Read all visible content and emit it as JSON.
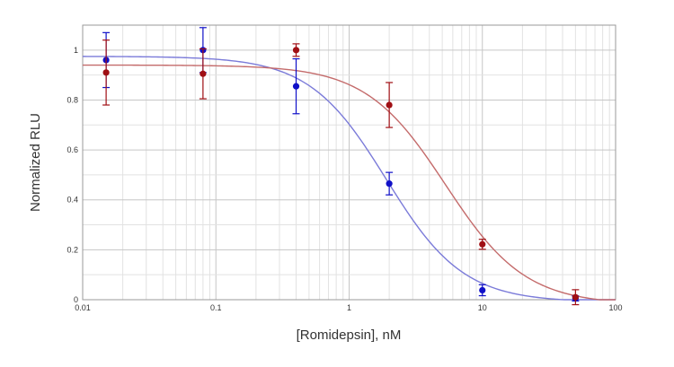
{
  "chart_data": {
    "type": "scatter",
    "title": "",
    "xlabel": "[Romidepsin], nM",
    "ylabel": "Normalized RLU",
    "x_scale": "log",
    "xlim": [
      0.01,
      100
    ],
    "ylim": [
      0,
      1.1
    ],
    "x_ticks": [
      0.01,
      0.1,
      1,
      10,
      100
    ],
    "x_tick_labels": [
      "0.01",
      "0.1",
      "1",
      "10",
      "100"
    ],
    "y_ticks": [
      0,
      0.2,
      0.4,
      0.6,
      0.8,
      1
    ],
    "y_tick_labels": [
      "0",
      "0.2",
      "0.4",
      "0.6",
      "0.8",
      "1"
    ],
    "grid": true,
    "legend": "none",
    "series": [
      {
        "color": "#1010c8",
        "curve_color": "#7b7bd9",
        "points": [
          {
            "x": 0.015,
            "y": 0.96,
            "err": 0.11
          },
          {
            "x": 0.08,
            "y": 1.0,
            "err": 0.09
          },
          {
            "x": 0.4,
            "y": 0.855,
            "err": 0.11
          },
          {
            "x": 2,
            "y": 0.465,
            "err": 0.045
          },
          {
            "x": 10,
            "y": 0.038,
            "err": 0.022
          },
          {
            "x": 50,
            "y": 0.005,
            "err": 0.01
          }
        ],
        "fit": {
          "top": 0.975,
          "bottom": -0.01,
          "ic50": 1.9,
          "hill": 1.5
        }
      },
      {
        "color": "#a00f14",
        "curve_color": "#c46b6b",
        "points": [
          {
            "x": 0.015,
            "y": 0.91,
            "err": 0.13
          },
          {
            "x": 0.08,
            "y": 0.905,
            "err": 0.1
          },
          {
            "x": 0.4,
            "y": 1.0,
            "err": 0.025
          },
          {
            "x": 2,
            "y": 0.78,
            "err": 0.09
          },
          {
            "x": 10,
            "y": 0.222,
            "err": 0.02
          },
          {
            "x": 50,
            "y": 0.01,
            "err": 0.03
          }
        ],
        "fit": {
          "top": 0.94,
          "bottom": -0.02,
          "ic50": 5.3,
          "hill": 1.45
        }
      }
    ]
  }
}
